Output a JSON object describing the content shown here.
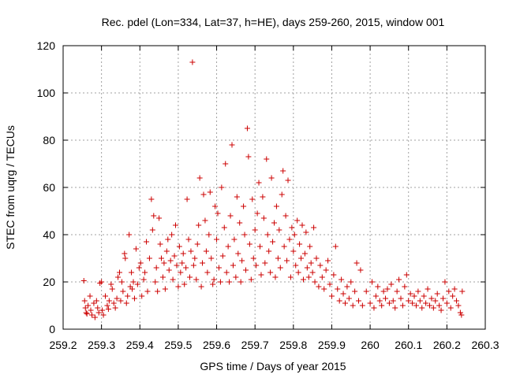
{
  "chart_data": {
    "type": "scatter",
    "title": "Rec. pdel (Lon=334, Lat=37, h=HE), days 259-260, 2015, window 001",
    "xlabel": "GPS time / Days of year 2015",
    "ylabel": "STEC from uqrg / TECUs",
    "xlim": [
      259.2,
      260.3
    ],
    "ylim": [
      0,
      120
    ],
    "xticks": [
      259.2,
      259.3,
      259.4,
      259.5,
      259.6,
      259.7,
      259.8,
      259.9,
      260,
      260.1,
      260.2,
      260.3
    ],
    "xtick_labels": [
      "259.2",
      "259.3",
      "259.4",
      "259.5",
      "259.6",
      "259.7",
      "259.8",
      "259.9",
      "260",
      "260.1",
      "260.2",
      "260.3"
    ],
    "yticks": [
      0,
      20,
      40,
      60,
      80,
      100,
      120
    ],
    "ytick_labels": [
      "0",
      "20",
      "40",
      "60",
      "80",
      "100",
      "120"
    ],
    "grid": true,
    "marker": "+",
    "marker_color": "#cc0000",
    "series": [
      {
        "points": [
          [
            259.254,
            20.5
          ],
          [
            259.256,
            12
          ],
          [
            259.258,
            9
          ],
          [
            259.26,
            7
          ],
          [
            259.262,
            6.5
          ],
          [
            259.265,
            10
          ],
          [
            259.27,
            14
          ],
          [
            259.272,
            8
          ],
          [
            259.275,
            6
          ],
          [
            259.28,
            11
          ],
          [
            259.283,
            5
          ],
          [
            259.287,
            12
          ],
          [
            259.29,
            9
          ],
          [
            259.293,
            7
          ],
          [
            259.296,
            19.5
          ],
          [
            259.3,
            20
          ],
          [
            259.302,
            8
          ],
          [
            259.305,
            6
          ],
          [
            259.31,
            14
          ],
          [
            259.315,
            10
          ],
          [
            259.318,
            8.5
          ],
          [
            259.32,
            12
          ],
          [
            259.325,
            19
          ],
          [
            259.328,
            17
          ],
          [
            259.332,
            11
          ],
          [
            259.336,
            9
          ],
          [
            259.34,
            13
          ],
          [
            259.343,
            22
          ],
          [
            259.347,
            24
          ],
          [
            259.35,
            12
          ],
          [
            259.353,
            20
          ],
          [
            259.356,
            16
          ],
          [
            259.36,
            32
          ],
          [
            259.362,
            30
          ],
          [
            259.365,
            11
          ],
          [
            259.368,
            14
          ],
          [
            259.372,
            40
          ],
          [
            259.375,
            18
          ],
          [
            259.378,
            24
          ],
          [
            259.38,
            17
          ],
          [
            259.383,
            20
          ],
          [
            259.386,
            13
          ],
          [
            259.39,
            34
          ],
          [
            259.394,
            19
          ],
          [
            259.398,
            26
          ],
          [
            259.402,
            28
          ],
          [
            259.405,
            14
          ],
          [
            259.41,
            21
          ],
          [
            259.413,
            24
          ],
          [
            259.417,
            37
          ],
          [
            259.42,
            16
          ],
          [
            259.425,
            30
          ],
          [
            259.43,
            55
          ],
          [
            259.433,
            42
          ],
          [
            259.436,
            48
          ],
          [
            259.44,
            20
          ],
          [
            259.443,
            26
          ],
          [
            259.446,
            16
          ],
          [
            259.45,
            47
          ],
          [
            259.453,
            36
          ],
          [
            259.456,
            30
          ],
          [
            259.46,
            22
          ],
          [
            259.463,
            28
          ],
          [
            259.466,
            17
          ],
          [
            259.47,
            33
          ],
          [
            259.473,
            38
          ],
          [
            259.476,
            25
          ],
          [
            259.48,
            29
          ],
          [
            259.483,
            40
          ],
          [
            259.486,
            21
          ],
          [
            259.49,
            31
          ],
          [
            259.493,
            44
          ],
          [
            259.496,
            27
          ],
          [
            259.5,
            18
          ],
          [
            259.503,
            35
          ],
          [
            259.506,
            24
          ],
          [
            259.51,
            28
          ],
          [
            259.513,
            32
          ],
          [
            259.516,
            19
          ],
          [
            259.52,
            26
          ],
          [
            259.523,
            55
          ],
          [
            259.527,
            38
          ],
          [
            259.53,
            22
          ],
          [
            259.533,
            33
          ],
          [
            259.537,
            113
          ],
          [
            259.54,
            27
          ],
          [
            259.543,
            30
          ],
          [
            259.547,
            21
          ],
          [
            259.55,
            36
          ],
          [
            259.553,
            44
          ],
          [
            259.556,
            64
          ],
          [
            259.56,
            18
          ],
          [
            259.563,
            28
          ],
          [
            259.566,
            57
          ],
          [
            259.57,
            46
          ],
          [
            259.573,
            33
          ],
          [
            259.576,
            24
          ],
          [
            259.58,
            40
          ],
          [
            259.583,
            58
          ],
          [
            259.586,
            30
          ],
          [
            259.59,
            19
          ],
          [
            259.593,
            21
          ],
          [
            259.596,
            52
          ],
          [
            259.6,
            38
          ],
          [
            259.603,
            49
          ],
          [
            259.606,
            26
          ],
          [
            259.61,
            20
          ],
          [
            259.613,
            60
          ],
          [
            259.616,
            31
          ],
          [
            259.62,
            43
          ],
          [
            259.623,
            70
          ],
          [
            259.626,
            24
          ],
          [
            259.63,
            35
          ],
          [
            259.633,
            20
          ],
          [
            259.636,
            48
          ],
          [
            259.64,
            78
          ],
          [
            259.643,
            27
          ],
          [
            259.646,
            38
          ],
          [
            259.65,
            22
          ],
          [
            259.653,
            56
          ],
          [
            259.656,
            32
          ],
          [
            259.66,
            45
          ],
          [
            259.663,
            20
          ],
          [
            259.666,
            29
          ],
          [
            259.67,
            52
          ],
          [
            259.673,
            40
          ],
          [
            259.676,
            25
          ],
          [
            259.68,
            85
          ],
          [
            259.683,
            73
          ],
          [
            259.686,
            36
          ],
          [
            259.69,
            21
          ],
          [
            259.693,
            55
          ],
          [
            259.696,
            30
          ],
          [
            259.7,
            42
          ],
          [
            259.703,
            27
          ],
          [
            259.706,
            49
          ],
          [
            259.71,
            62
          ],
          [
            259.713,
            35
          ],
          [
            259.716,
            23
          ],
          [
            259.72,
            56
          ],
          [
            259.723,
            47
          ],
          [
            259.726,
            28
          ],
          [
            259.73,
            72
          ],
          [
            259.733,
            40
          ],
          [
            259.736,
            33
          ],
          [
            259.74,
            24
          ],
          [
            259.743,
            64
          ],
          [
            259.746,
            37
          ],
          [
            259.75,
            45
          ],
          [
            259.753,
            22
          ],
          [
            259.756,
            52
          ],
          [
            259.76,
            30
          ],
          [
            259.763,
            42
          ],
          [
            259.766,
            26
          ],
          [
            259.77,
            57
          ],
          [
            259.773,
            67
          ],
          [
            259.776,
            35
          ],
          [
            259.78,
            48
          ],
          [
            259.783,
            29
          ],
          [
            259.786,
            63
          ],
          [
            259.79,
            38
          ],
          [
            259.793,
            22
          ],
          [
            259.796,
            43
          ],
          [
            259.8,
            33
          ],
          [
            259.803,
            40
          ],
          [
            259.806,
            27
          ],
          [
            259.81,
            46
          ],
          [
            259.813,
            24
          ],
          [
            259.816,
            36
          ],
          [
            259.82,
            30
          ],
          [
            259.823,
            44
          ],
          [
            259.826,
            21
          ],
          [
            259.83,
            32
          ],
          [
            259.833,
            41
          ],
          [
            259.836,
            26
          ],
          [
            259.84,
            22
          ],
          [
            259.843,
            35
          ],
          [
            259.846,
            28
          ],
          [
            259.85,
            24
          ],
          [
            259.853,
            43
          ],
          [
            259.856,
            20
          ],
          [
            259.86,
            30
          ],
          [
            259.866,
            18
          ],
          [
            259.87,
            27
          ],
          [
            259.875,
            22
          ],
          [
            259.88,
            17
          ],
          [
            259.885,
            25
          ],
          [
            259.89,
            29
          ],
          [
            259.895,
            19
          ],
          [
            259.9,
            14
          ],
          [
            259.905,
            23
          ],
          [
            259.91,
            35
          ],
          [
            259.915,
            17
          ],
          [
            259.92,
            12
          ],
          [
            259.925,
            21
          ],
          [
            259.93,
            15
          ],
          [
            259.935,
            11
          ],
          [
            259.94,
            18
          ],
          [
            259.945,
            13
          ],
          [
            259.95,
            20
          ],
          [
            259.955,
            10
          ],
          [
            259.96,
            16
          ],
          [
            259.965,
            28
          ],
          [
            259.97,
            12
          ],
          [
            259.975,
            25
          ],
          [
            259.98,
            10
          ],
          [
            259.99,
            16
          ],
          [
            260.0,
            11
          ],
          [
            260.005,
            20
          ],
          [
            260.01,
            9
          ],
          [
            260.015,
            14
          ],
          [
            260.02,
            18
          ],
          [
            260.025,
            12
          ],
          [
            260.03,
            10
          ],
          [
            260.035,
            16
          ],
          [
            260.04,
            13
          ],
          [
            260.045,
            17
          ],
          [
            260.05,
            11
          ],
          [
            260.055,
            19
          ],
          [
            260.06,
            12
          ],
          [
            260.065,
            9
          ],
          [
            260.07,
            16
          ],
          [
            260.075,
            21
          ],
          [
            260.08,
            13
          ],
          [
            260.085,
            10
          ],
          [
            260.09,
            18
          ],
          [
            260.095,
            23
          ],
          [
            260.1,
            12
          ],
          [
            260.105,
            15
          ],
          [
            260.11,
            11
          ],
          [
            260.115,
            14
          ],
          [
            260.12,
            10
          ],
          [
            260.125,
            16
          ],
          [
            260.13,
            12
          ],
          [
            260.135,
            9
          ],
          [
            260.14,
            14
          ],
          [
            260.145,
            11
          ],
          [
            260.15,
            17
          ],
          [
            260.155,
            10
          ],
          [
            260.16,
            13
          ],
          [
            260.165,
            9
          ],
          [
            260.17,
            12
          ],
          [
            260.175,
            15
          ],
          [
            260.18,
            10
          ],
          [
            260.185,
            8
          ],
          [
            260.19,
            13
          ],
          [
            260.195,
            20
          ],
          [
            260.2,
            11
          ],
          [
            260.205,
            16
          ],
          [
            260.21,
            9
          ],
          [
            260.215,
            14
          ],
          [
            260.22,
            17
          ],
          [
            260.225,
            12
          ],
          [
            260.23,
            10
          ],
          [
            260.235,
            7
          ],
          [
            260.238,
            6
          ],
          [
            260.24,
            16
          ]
        ]
      }
    ]
  }
}
